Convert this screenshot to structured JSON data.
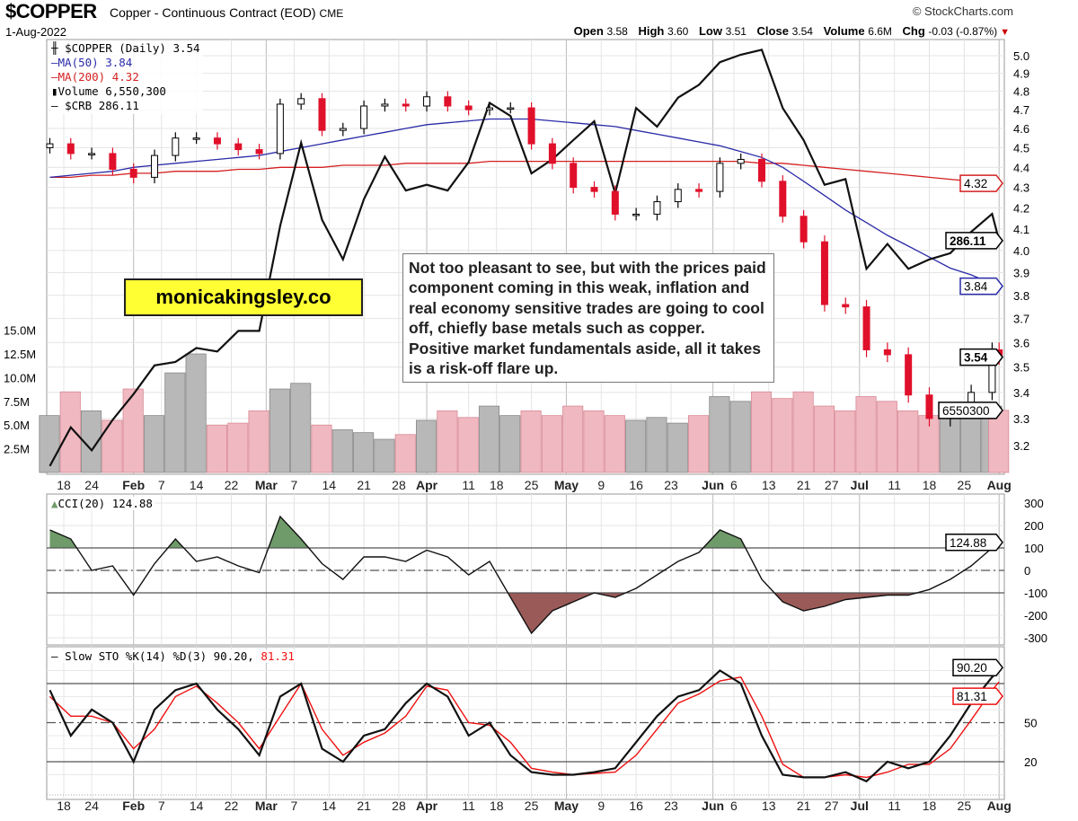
{
  "header": {
    "symbol": "$COPPER",
    "name": "Copper - Continuous Contract (EOD)",
    "exchange": "CME",
    "date": "1-Aug-2022",
    "copyright": "© StockCharts.com",
    "stats": {
      "open_label": "Open",
      "open": "3.58",
      "high_label": "High",
      "high": "3.60",
      "low_label": "Low",
      "low": "3.51",
      "close_label": "Close",
      "close": "3.54",
      "volume_label": "Volume",
      "volume": "6.6M",
      "chg_label": "Chg",
      "chg": "-0.03 (-0.87%)",
      "chg_direction": "down"
    }
  },
  "legend": {
    "price": "$COPPER (Daily) 3.54",
    "ma50": "MA(50) 3.84",
    "ma200": "MA(200) 4.32",
    "volume": "Volume 6,550,300",
    "crb": "$CRB 286.11"
  },
  "annotations": {
    "brand": "monicakingsley.co",
    "note": "Not too pleasant to see, but with the prices paid component coming in this weak, inflation and real economy sensitive trades are going to cool off, chiefly base metals such as copper. Positive market fundamentals aside, all it takes is a risk-off flare up."
  },
  "colors": {
    "up_candle": "#ffffff",
    "down_candle": "#e0102a",
    "ma50": "#2a2aa8",
    "ma200": "#d42020",
    "crb": "#111111",
    "volume_up": "#b8b8b8",
    "volume_down": "#f0b8c0",
    "cci_above": "#6f9a6a",
    "cci_below": "#9a5a58",
    "sto_k": "#111111",
    "sto_d": "#ee1111"
  },
  "chart_data": [
    {
      "type": "candlestick",
      "title": "$COPPER (Daily)",
      "scale": "log",
      "ylim": [
        3.1,
        5.05
      ],
      "y_ticks": [
        "3.2",
        "3.3",
        "3.4",
        "3.5",
        "3.6",
        "3.7",
        "3.8",
        "3.9",
        "4.0",
        "4.1",
        "4.2",
        "4.3",
        "4.4",
        "4.5",
        "4.6",
        "4.7",
        "4.8",
        "4.9",
        "5.0"
      ],
      "volume_ticks": [
        "2.5M",
        "5.0M",
        "7.5M",
        "10.0M",
        "12.5M",
        "15.0M"
      ],
      "grid": true,
      "x_ticks": [
        {
          "label": "18",
          "date": "01-18"
        },
        {
          "label": "24",
          "date": "01-24"
        },
        {
          "label": "Feb",
          "date": "02-01",
          "major": true
        },
        {
          "label": "7",
          "date": "02-07"
        },
        {
          "label": "14",
          "date": "02-14"
        },
        {
          "label": "22",
          "date": "02-22"
        },
        {
          "label": "Mar",
          "date": "03-01",
          "major": true
        },
        {
          "label": "7",
          "date": "03-07"
        },
        {
          "label": "14",
          "date": "03-14"
        },
        {
          "label": "21",
          "date": "03-21"
        },
        {
          "label": "28",
          "date": "03-28"
        },
        {
          "label": "Apr",
          "date": "04-01",
          "major": true
        },
        {
          "label": "11",
          "date": "04-11"
        },
        {
          "label": "18",
          "date": "04-18"
        },
        {
          "label": "25",
          "date": "04-25"
        },
        {
          "label": "May",
          "date": "05-02",
          "major": true
        },
        {
          "label": "9",
          "date": "05-09"
        },
        {
          "label": "16",
          "date": "05-16"
        },
        {
          "label": "23",
          "date": "05-23"
        },
        {
          "label": "Jun",
          "date": "06-01",
          "major": true
        },
        {
          "label": "6",
          "date": "06-06"
        },
        {
          "label": "13",
          "date": "06-13"
        },
        {
          "label": "21",
          "date": "06-21"
        },
        {
          "label": "27",
          "date": "06-27"
        },
        {
          "label": "Jul",
          "date": "07-01",
          "major": true
        },
        {
          "label": "11",
          "date": "07-11"
        },
        {
          "label": "18",
          "date": "07-18"
        },
        {
          "label": "25",
          "date": "07-25"
        },
        {
          "label": "Aug",
          "date": "08-01",
          "major": true
        }
      ],
      "dates": [
        "01-13",
        "01-19",
        "01-24",
        "01-27",
        "02-01",
        "02-04",
        "02-09",
        "02-14",
        "02-17",
        "02-23",
        "02-28",
        "03-03",
        "03-08",
        "03-11",
        "03-16",
        "03-21",
        "03-24",
        "03-29",
        "04-01",
        "04-06",
        "04-11",
        "04-14",
        "04-20",
        "04-25",
        "04-28",
        "05-03",
        "05-06",
        "05-11",
        "05-16",
        "05-19",
        "05-24",
        "05-27",
        "06-02",
        "06-07",
        "06-10",
        "06-15",
        "06-21",
        "06-24",
        "06-29",
        "07-05",
        "07-08",
        "07-13",
        "07-18",
        "07-21",
        "07-26",
        "07-29",
        "08-01"
      ],
      "close": [
        4.52,
        4.47,
        4.47,
        4.39,
        4.35,
        4.46,
        4.55,
        4.55,
        4.52,
        4.49,
        4.47,
        4.73,
        4.76,
        4.59,
        4.6,
        4.72,
        4.73,
        4.72,
        4.77,
        4.72,
        4.7,
        4.71,
        4.71,
        4.52,
        4.42,
        4.3,
        4.28,
        4.17,
        4.17,
        4.23,
        4.29,
        4.28,
        4.42,
        4.44,
        4.33,
        4.16,
        4.04,
        3.76,
        3.75,
        3.57,
        3.55,
        3.39,
        3.3,
        3.33,
        3.4,
        3.57,
        3.54
      ],
      "ma50": [
        4.35,
        4.36,
        4.37,
        4.38,
        4.4,
        4.41,
        4.42,
        4.43,
        4.44,
        4.45,
        4.46,
        4.48,
        4.5,
        4.52,
        4.54,
        4.56,
        4.58,
        4.6,
        4.62,
        4.63,
        4.64,
        4.65,
        4.65,
        4.65,
        4.64,
        4.63,
        4.62,
        4.61,
        4.59,
        4.57,
        4.55,
        4.53,
        4.51,
        4.48,
        4.45,
        4.4,
        4.33,
        4.26,
        4.19,
        4.13,
        4.07,
        4.02,
        3.97,
        3.92,
        3.89,
        3.85,
        3.84
      ],
      "ma200": [
        4.35,
        4.35,
        4.36,
        4.36,
        4.37,
        4.37,
        4.38,
        4.38,
        4.38,
        4.39,
        4.39,
        4.4,
        4.4,
        4.4,
        4.41,
        4.41,
        4.41,
        4.42,
        4.42,
        4.42,
        4.42,
        4.43,
        4.43,
        4.43,
        4.43,
        4.43,
        4.43,
        4.43,
        4.43,
        4.43,
        4.43,
        4.43,
        4.43,
        4.43,
        4.42,
        4.42,
        4.41,
        4.4,
        4.39,
        4.38,
        4.37,
        4.36,
        4.35,
        4.34,
        4.33,
        4.32,
        4.32
      ],
      "crb": [
        221,
        231,
        225,
        233,
        240,
        248,
        249,
        253,
        252,
        258,
        258,
        291,
        320,
        293,
        280,
        300,
        315,
        303,
        305,
        303,
        313,
        335,
        330,
        309,
        314,
        321,
        328,
        302,
        333,
        326,
        337,
        342,
        351,
        354,
        356,
        333,
        321,
        305,
        307,
        277,
        285,
        277,
        280,
        282,
        289,
        295,
        286.11
      ],
      "volume_millions": [
        6.0,
        8.5,
        6.5,
        5.5,
        8.8,
        6.0,
        10.5,
        12.5,
        5.0,
        5.2,
        6.5,
        8.8,
        9.4,
        5.0,
        4.5,
        4.2,
        3.5,
        4.0,
        5.5,
        6.5,
        5.8,
        7.0,
        6.0,
        6.5,
        6.0,
        7.0,
        6.5,
        6.0,
        5.5,
        5.8,
        5.2,
        6.0,
        8.0,
        7.5,
        8.5,
        7.8,
        8.5,
        7.0,
        6.5,
        8.0,
        7.5,
        6.5,
        6.0,
        6.2,
        6.8,
        7.0,
        6.5503
      ],
      "last_tags": {
        "ma200": "4.32",
        "crb": "286.11",
        "ma50": "3.84",
        "close": "3.54",
        "volume": "6550300"
      }
    },
    {
      "type": "line",
      "title": "CCI(20) 124.88",
      "ylim": [
        -350,
        350
      ],
      "y_ticks": [
        "300",
        "200",
        "100",
        "0",
        "-100",
        "-200",
        "-300"
      ],
      "reference_lines": [
        100,
        0,
        -100
      ],
      "values": [
        180,
        140,
        0,
        20,
        -110,
        30,
        140,
        40,
        60,
        20,
        -10,
        240,
        140,
        30,
        -40,
        60,
        60,
        40,
        90,
        60,
        -20,
        40,
        -120,
        -280,
        -180,
        -140,
        -100,
        -120,
        -80,
        -20,
        40,
        80,
        180,
        140,
        -40,
        -140,
        -180,
        -160,
        -130,
        -120,
        -110,
        -110,
        -85,
        -40,
        20,
        100,
        124.88
      ],
      "last_tag": "124.88"
    },
    {
      "type": "line",
      "title_prefix": "Slow STO %K(14) %D(3) 90.20,",
      "title_suffix": "81.31",
      "ylim": [
        0,
        100
      ],
      "y_ticks": [
        "50",
        "20"
      ],
      "reference_lines": [
        80,
        50,
        20
      ],
      "series": [
        {
          "name": "%K(14)",
          "values": [
            75,
            40,
            60,
            50,
            20,
            60,
            75,
            80,
            60,
            45,
            25,
            70,
            80,
            30,
            20,
            40,
            45,
            65,
            80,
            70,
            40,
            50,
            25,
            12,
            10,
            10,
            12,
            15,
            35,
            55,
            70,
            75,
            90,
            80,
            40,
            10,
            8,
            8,
            12,
            5,
            20,
            15,
            20,
            40,
            65,
            85,
            90.2
          ]
        },
        {
          "name": "%D(3)",
          "values": [
            70,
            55,
            55,
            50,
            30,
            45,
            70,
            78,
            65,
            50,
            30,
            55,
            80,
            45,
            25,
            35,
            42,
            55,
            78,
            75,
            50,
            48,
            35,
            15,
            12,
            10,
            11,
            12,
            25,
            45,
            65,
            72,
            82,
            85,
            55,
            18,
            8,
            8,
            10,
            8,
            12,
            18,
            18,
            30,
            52,
            75,
            81.31
          ]
        }
      ],
      "last_tags": {
        "k": "90.20",
        "d": "81.31"
      }
    }
  ]
}
